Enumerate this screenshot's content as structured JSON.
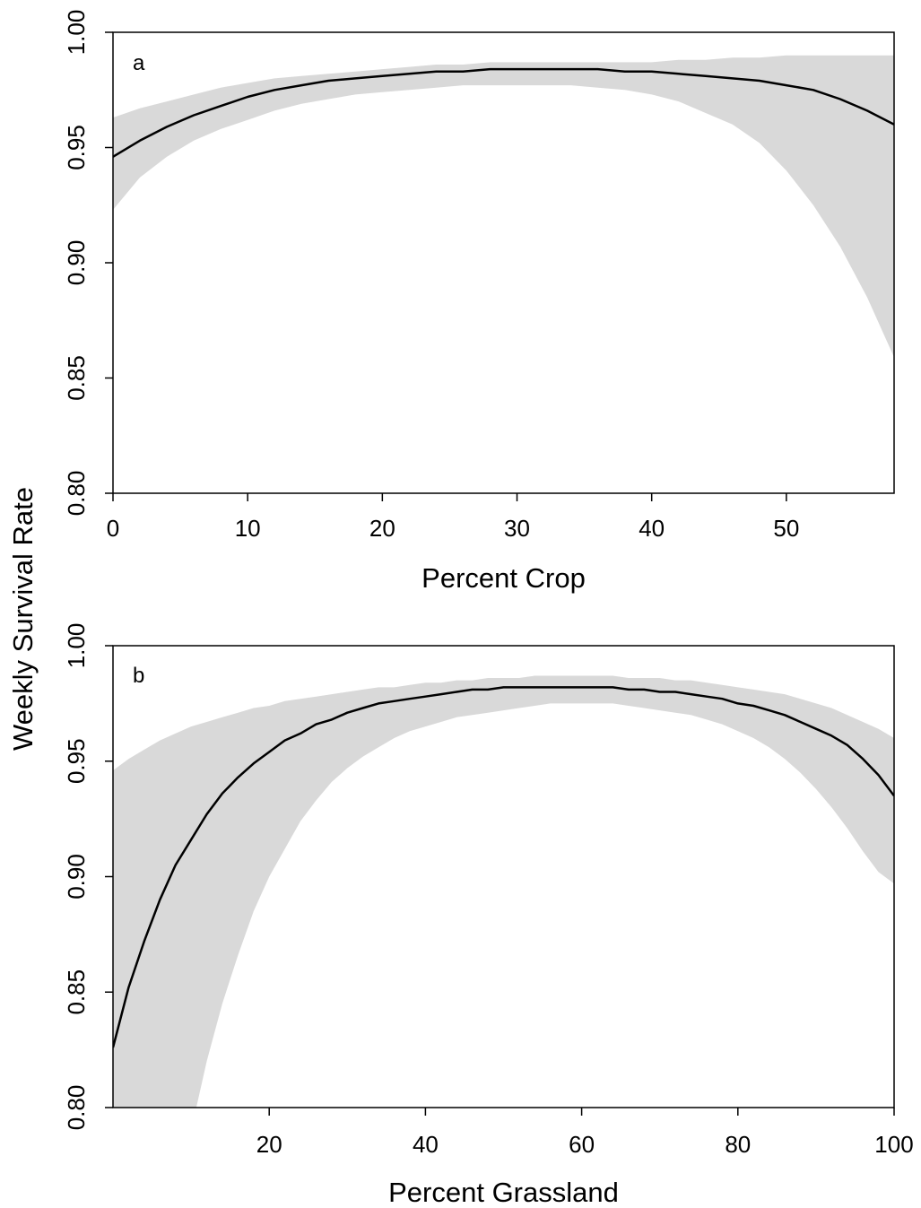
{
  "figure": {
    "shared_ylabel": "Weekly Survival Rate"
  },
  "colors": {
    "band": "#d9d9d9",
    "line": "#000000",
    "frame": "#000000"
  },
  "chart_data": [
    {
      "type": "line",
      "panel_label": "a",
      "xlabel": "Percent Crop",
      "ylabel": "Weekly Survival Rate",
      "xlim": [
        0,
        58
      ],
      "ylim": [
        0.8,
        1.0
      ],
      "xticks": [
        0,
        10,
        20,
        30,
        40,
        50
      ],
      "yticks": [
        0.8,
        0.85,
        0.9,
        0.95,
        1.0
      ],
      "ytick_labels": [
        "0.80",
        "0.85",
        "0.90",
        "0.95",
        "1.00"
      ],
      "grid": false,
      "x": [
        0,
        2,
        4,
        6,
        8,
        10,
        12,
        14,
        16,
        18,
        20,
        22,
        24,
        26,
        28,
        30,
        32,
        34,
        36,
        38,
        40,
        42,
        44,
        46,
        48,
        50,
        52,
        54,
        56,
        58
      ],
      "series": [
        {
          "role": "estimate",
          "values": [
            0.946,
            0.953,
            0.959,
            0.964,
            0.968,
            0.972,
            0.975,
            0.977,
            0.979,
            0.98,
            0.981,
            0.982,
            0.983,
            0.983,
            0.984,
            0.984,
            0.984,
            0.984,
            0.984,
            0.983,
            0.983,
            0.982,
            0.981,
            0.98,
            0.979,
            0.977,
            0.975,
            0.971,
            0.966,
            0.96
          ]
        },
        {
          "role": "ci_upper",
          "values": [
            0.963,
            0.967,
            0.97,
            0.973,
            0.976,
            0.978,
            0.98,
            0.981,
            0.982,
            0.983,
            0.984,
            0.985,
            0.986,
            0.986,
            0.987,
            0.987,
            0.987,
            0.987,
            0.987,
            0.987,
            0.987,
            0.988,
            0.988,
            0.989,
            0.989,
            0.99,
            0.99,
            0.99,
            0.99,
            0.99
          ]
        },
        {
          "role": "ci_lower",
          "values": [
            0.923,
            0.937,
            0.946,
            0.953,
            0.958,
            0.962,
            0.966,
            0.969,
            0.971,
            0.973,
            0.974,
            0.975,
            0.976,
            0.977,
            0.977,
            0.977,
            0.977,
            0.977,
            0.976,
            0.975,
            0.973,
            0.97,
            0.965,
            0.96,
            0.952,
            0.94,
            0.925,
            0.907,
            0.885,
            0.859
          ]
        }
      ]
    },
    {
      "type": "line",
      "panel_label": "b",
      "xlabel": "Percent Grassland",
      "ylabel": "Weekly Survival Rate",
      "xlim": [
        0,
        100
      ],
      "ylim": [
        0.8,
        1.0
      ],
      "xticks": [
        20,
        40,
        60,
        80,
        100
      ],
      "yticks": [
        0.8,
        0.85,
        0.9,
        0.95,
        1.0
      ],
      "ytick_labels": [
        "0.80",
        "0.85",
        "0.90",
        "0.95",
        "1.00"
      ],
      "grid": false,
      "x": [
        0,
        2,
        4,
        6,
        8,
        10,
        12,
        14,
        16,
        18,
        20,
        22,
        24,
        26,
        28,
        30,
        32,
        34,
        36,
        38,
        40,
        42,
        44,
        46,
        48,
        50,
        52,
        54,
        56,
        58,
        60,
        62,
        64,
        66,
        68,
        70,
        72,
        74,
        76,
        78,
        80,
        82,
        84,
        86,
        88,
        90,
        92,
        94,
        96,
        98,
        100
      ],
      "series": [
        {
          "role": "estimate",
          "values": [
            0.826,
            0.852,
            0.872,
            0.89,
            0.905,
            0.916,
            0.927,
            0.936,
            0.943,
            0.949,
            0.954,
            0.959,
            0.962,
            0.966,
            0.968,
            0.971,
            0.973,
            0.975,
            0.976,
            0.977,
            0.978,
            0.979,
            0.98,
            0.981,
            0.981,
            0.982,
            0.982,
            0.982,
            0.982,
            0.982,
            0.982,
            0.982,
            0.982,
            0.981,
            0.981,
            0.98,
            0.98,
            0.979,
            0.978,
            0.977,
            0.975,
            0.974,
            0.972,
            0.97,
            0.967,
            0.964,
            0.961,
            0.957,
            0.951,
            0.944,
            0.935
          ]
        },
        {
          "role": "ci_upper",
          "values": [
            0.946,
            0.951,
            0.955,
            0.959,
            0.962,
            0.965,
            0.967,
            0.969,
            0.971,
            0.973,
            0.974,
            0.976,
            0.977,
            0.978,
            0.979,
            0.98,
            0.981,
            0.982,
            0.982,
            0.983,
            0.984,
            0.984,
            0.985,
            0.985,
            0.986,
            0.986,
            0.986,
            0.987,
            0.987,
            0.987,
            0.987,
            0.987,
            0.987,
            0.986,
            0.986,
            0.986,
            0.985,
            0.985,
            0.984,
            0.983,
            0.982,
            0.981,
            0.98,
            0.979,
            0.977,
            0.975,
            0.973,
            0.97,
            0.967,
            0.964,
            0.96
          ]
        },
        {
          "role": "ci_lower",
          "values": [
            0.78,
            0.78,
            0.78,
            0.78,
            0.78,
            0.79,
            0.82,
            0.845,
            0.866,
            0.885,
            0.9,
            0.912,
            0.924,
            0.933,
            0.941,
            0.947,
            0.952,
            0.956,
            0.96,
            0.963,
            0.965,
            0.967,
            0.969,
            0.97,
            0.971,
            0.972,
            0.973,
            0.974,
            0.975,
            0.975,
            0.975,
            0.975,
            0.975,
            0.974,
            0.973,
            0.972,
            0.971,
            0.97,
            0.968,
            0.966,
            0.963,
            0.96,
            0.956,
            0.951,
            0.945,
            0.938,
            0.93,
            0.921,
            0.911,
            0.902,
            0.897
          ]
        }
      ]
    }
  ]
}
